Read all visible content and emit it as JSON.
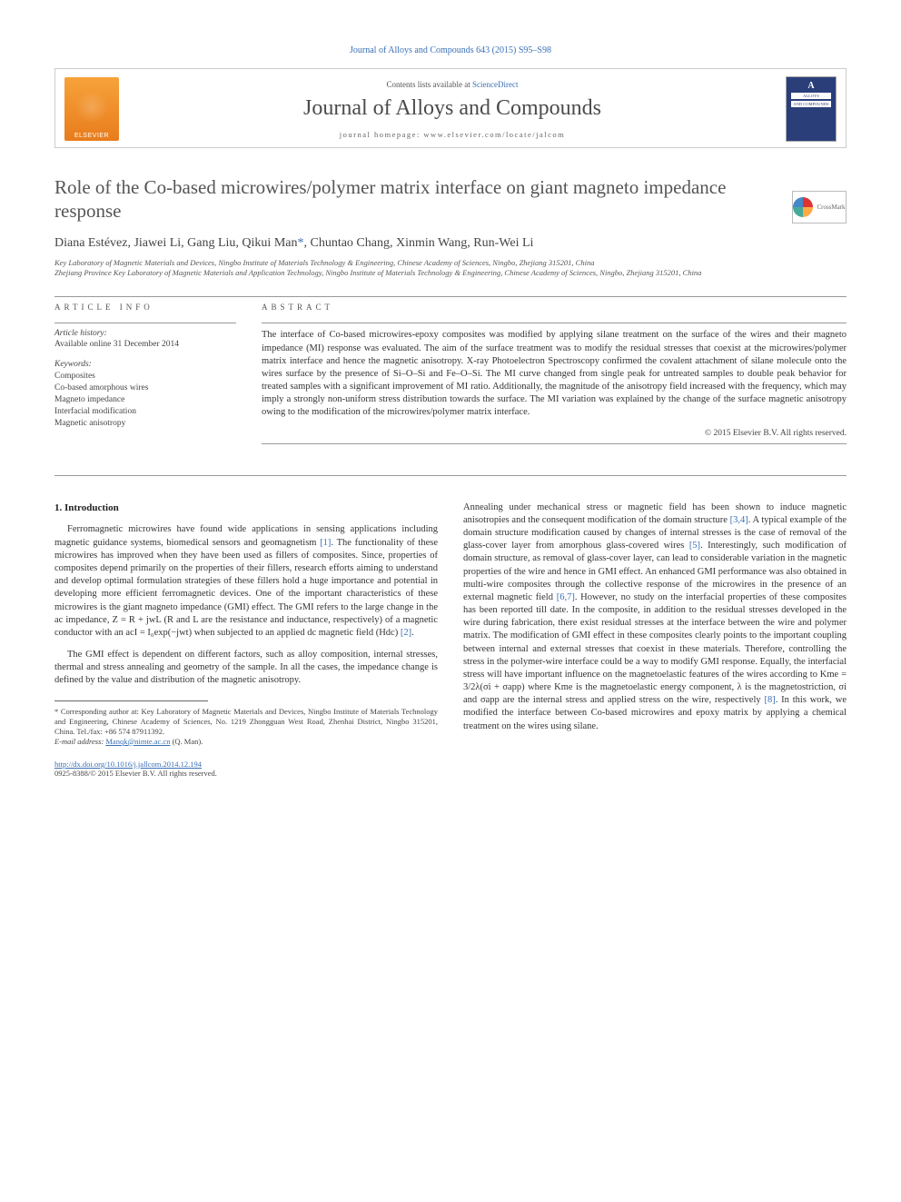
{
  "journal_ref": "Journal of Alloys and Compounds 643 (2015) S95–S98",
  "header": {
    "contents_prefix": "Contents lists available at ",
    "contents_link": "ScienceDirect",
    "journal_title": "Journal of Alloys and Compounds",
    "homepage_label": "journal homepage: www.elsevier.com/locate/jalcom",
    "elsevier_label": "ELSEVIER",
    "cover_line1": "ALLOYS",
    "cover_line2": "AND COMPOUNDS"
  },
  "crossmark_label": "CrossMark",
  "title": "Role of the Co-based microwires/polymer matrix interface on giant magneto impedance response",
  "authors_html": "Diana Estévez, Jiawei Li, Gang Liu, Qikui Man",
  "authors_rest": ", Chuntao Chang, Xinmin Wang, Run-Wei Li",
  "star": "*",
  "affiliation": "Key Laboratory of Magnetic Materials and Devices, Ningbo Institute of Materials Technology & Engineering, Chinese Academy of Sciences, Ningbo, Zhejiang 315201, China\nZhejiang Province Key Laboratory of Magnetic Materials and Application Technology, Ningbo Institute of Materials Technology & Engineering, Chinese Academy of Sciences, Ningbo, Zhejiang 315201, China",
  "info": {
    "label": "ARTICLE INFO",
    "history_head": "Article history:",
    "history_line": "Available online 31 December 2014",
    "keywords_head": "Keywords:",
    "keywords": [
      "Composites",
      "Co-based amorphous wires",
      "Magneto impedance",
      "Interfacial modification",
      "Magnetic anisotropy"
    ]
  },
  "abstract": {
    "label": "ABSTRACT",
    "text": "The interface of Co-based microwires-epoxy composites was modified by applying silane treatment on the surface of the wires and their magneto impedance (MI) response was evaluated. The aim of the surface treatment was to modify the residual stresses that coexist at the microwires/polymer matrix interface and hence the magnetic anisotropy. X-ray Photoelectron Spectroscopy confirmed the covalent attachment of silane molecule onto the wires surface by the presence of Si–O–Si and Fe–O–Si. The MI curve changed from single peak for untreated samples to double peak behavior for treated samples with a significant improvement of MI ratio. Additionally, the magnitude of the anisotropy field increased with the frequency, which may imply a strongly non-uniform stress distribution towards the surface. The MI variation was explained by the change of the surface magnetic anisotropy owing to the modification of the microwires/polymer matrix interface.",
    "copyright": "© 2015 Elsevier B.V. All rights reserved."
  },
  "body": {
    "section_heading": "1. Introduction",
    "p1": "Ferromagnetic microwires have found wide applications in sensing applications including magnetic guidance systems, biomedical sensors and geomagnetism [1]. The functionality of these microwires has improved when they have been used as fillers of composites. Since, properties of composites depend primarily on the properties of their fillers, research efforts aiming to understand and develop optimal formulation strategies of these fillers hold a huge importance and potential in developing more efficient ferromagnetic devices. One of the important characteristics of these microwires is the giant magneto impedance (GMI) effect. The GMI refers to the large change in the ac impedance, Z = R + jwL (R and L are the resistance and inductance, respectively) of a magnetic conductor with an acI = I₀exp(−jwt) when subjected to an applied dc magnetic field (Hdc) [2].",
    "p2": "The GMI effect is dependent on different factors, such as alloy composition, internal stresses, thermal and stress annealing and geometry of the sample. In all the cases, the impedance change is defined by the value and distribution of the magnetic anisotropy.",
    "p3": "Annealing under mechanical stress or magnetic field has been shown to induce magnetic anisotropies and the consequent modification of the domain structure [3,4]. A typical example of the domain structure modification caused by changes of internal stresses is the case of removal of the glass-cover layer from amorphous glass-covered wires [5]. Interestingly, such modification of domain structure, as removal of glass-cover layer, can lead to considerable variation in the magnetic properties of the wire and hence in GMI effect. An enhanced GMI performance was also obtained in multi-wire composites through the collective response of the microwires in the presence of an external magnetic field [6,7]. However, no study on the interfacial properties of these composites has been reported till date. In the composite, in addition to the residual stresses developed in the wire during fabrication, there exist residual stresses at the interface between the wire and polymer matrix. The modification of GMI effect in these composites clearly points to the important coupling between internal and external stresses that coexist in these materials. Therefore, controlling the stress in the polymer-wire interface could be a way to modify GMI response. Equally, the interfacial stress will have important influence on the magnetoelastic features of the wires according to Kme = 3/2λ(σi + σapp) where Kme is the magnetoelastic energy component, λ is the magnetostriction, σi and σapp are the internal stress and applied stress on the wire, respectively [8]. In this work, we modified the interface between Co-based microwires and epoxy matrix by applying a chemical treatment on the wires using silane."
  },
  "footnotes": {
    "corr": "* Corresponding author at: Key Laboratory of Magnetic Materials and Devices, Ningbo Institute of Materials Technology and Engineering, Chinese Academy of Sciences, No. 1219 Zhongguan West Road, Zhenhai District, Ningbo 315201, China. Tel./fax: +86 574 87911392.",
    "email_label": "E-mail address: ",
    "email": "Manqk@nimte.ac.cn",
    "email_suffix": " (Q. Man)."
  },
  "bottom": {
    "doi": "http://dx.doi.org/10.1016/j.jallcom.2014.12.194",
    "issn": "0925-8388/© 2015 Elsevier B.V. All rights reserved."
  },
  "colors": {
    "link": "#3a6fb5",
    "text": "#333333",
    "heading": "#555555",
    "rule": "#999999"
  }
}
